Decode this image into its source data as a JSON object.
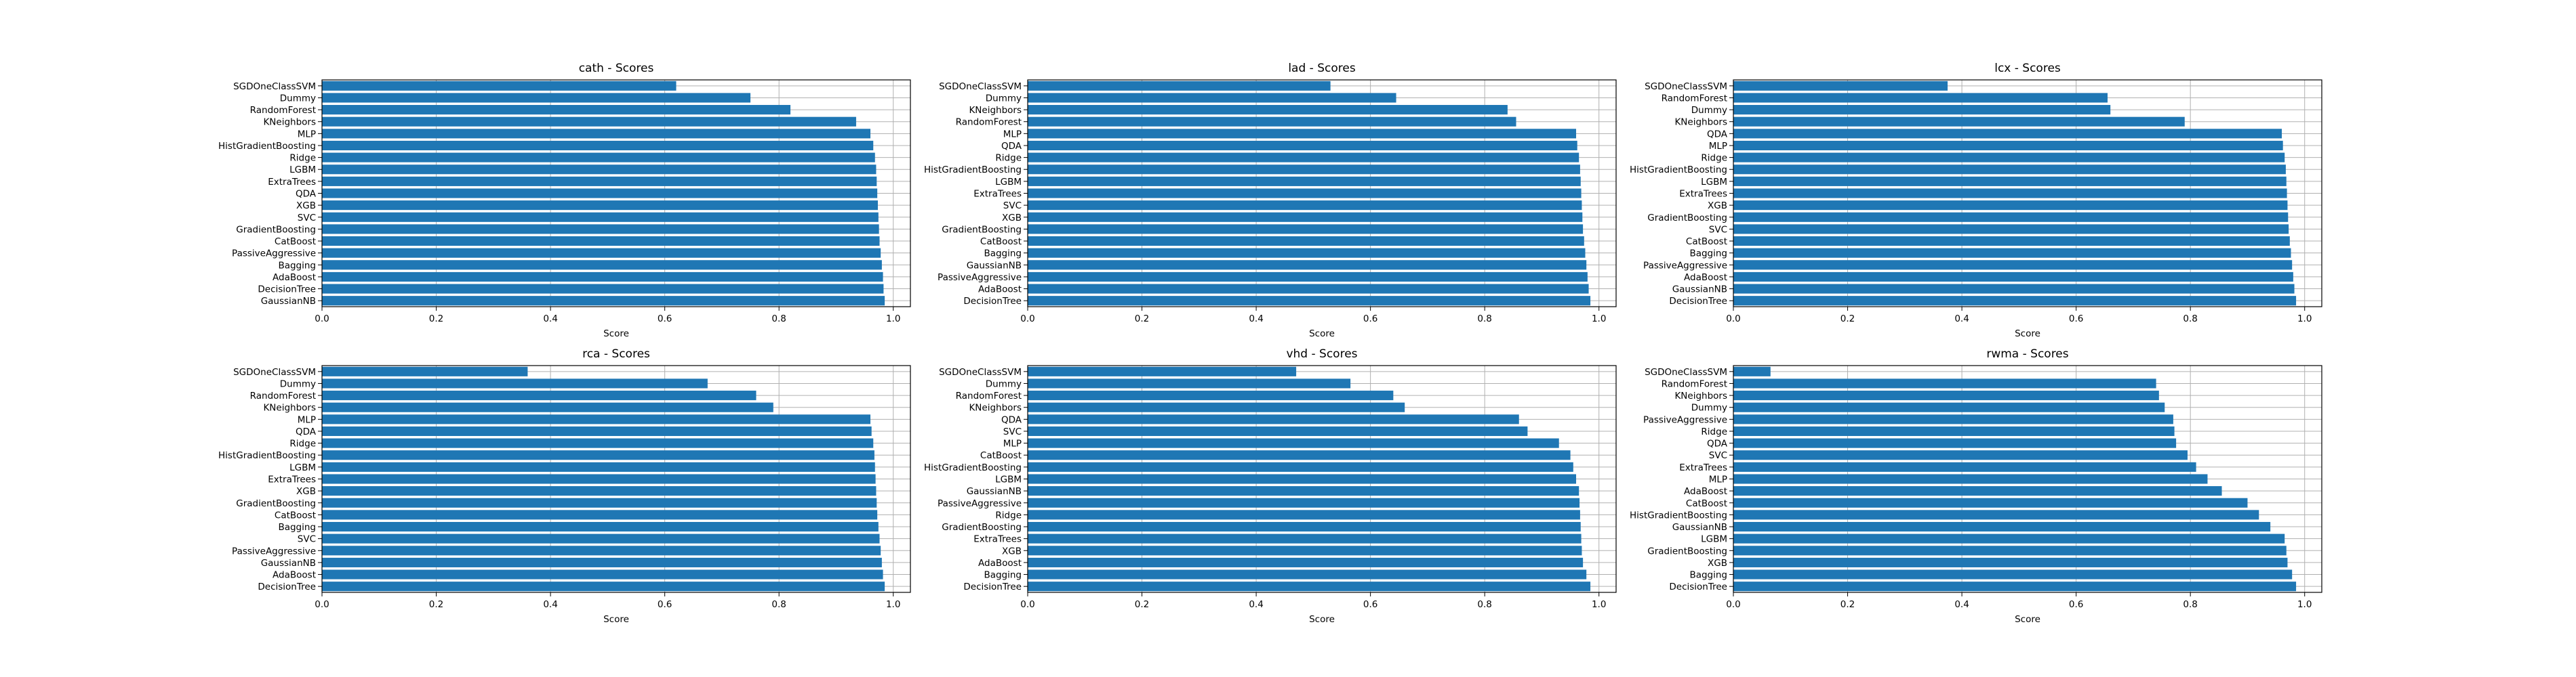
{
  "colors": {
    "bar": "#1f77b4",
    "grid": "#b0b0b0",
    "axis": "#000000"
  },
  "chart_data": [
    {
      "type": "bar",
      "orientation": "horizontal",
      "grid": true,
      "title": "cath - Scores",
      "xlabel": "Score",
      "ylabel": "",
      "xlim": [
        0,
        1.03
      ],
      "xticks": [
        "0.0",
        "0.2",
        "0.4",
        "0.6",
        "0.8",
        "1.0"
      ],
      "categories": [
        "SGDOneClassSVM",
        "Dummy",
        "RandomForest",
        "KNeighbors",
        "MLP",
        "HistGradientBoosting",
        "Ridge",
        "LGBM",
        "ExtraTrees",
        "QDA",
        "XGB",
        "SVC",
        "GradientBoosting",
        "CatBoost",
        "PassiveAggressive",
        "Bagging",
        "AdaBoost",
        "DecisionTree",
        "GaussianNB"
      ],
      "values": [
        0.62,
        0.75,
        0.82,
        0.935,
        0.96,
        0.965,
        0.968,
        0.97,
        0.971,
        0.972,
        0.973,
        0.974,
        0.975,
        0.976,
        0.978,
        0.98,
        0.982,
        0.983,
        0.985
      ]
    },
    {
      "type": "bar",
      "orientation": "horizontal",
      "grid": true,
      "title": "lad - Scores",
      "xlabel": "Score",
      "ylabel": "",
      "xlim": [
        0,
        1.03
      ],
      "xticks": [
        "0.0",
        "0.2",
        "0.4",
        "0.6",
        "0.8",
        "1.0"
      ],
      "categories": [
        "SGDOneClassSVM",
        "Dummy",
        "KNeighbors",
        "RandomForest",
        "MLP",
        "QDA",
        "Ridge",
        "HistGradientBoosting",
        "LGBM",
        "ExtraTrees",
        "SVC",
        "XGB",
        "GradientBoosting",
        "CatBoost",
        "Bagging",
        "GaussianNB",
        "PassiveAggressive",
        "AdaBoost",
        "DecisionTree"
      ],
      "values": [
        0.53,
        0.645,
        0.84,
        0.855,
        0.96,
        0.962,
        0.965,
        0.967,
        0.968,
        0.969,
        0.97,
        0.971,
        0.972,
        0.974,
        0.976,
        0.978,
        0.98,
        0.982,
        0.985
      ]
    },
    {
      "type": "bar",
      "orientation": "horizontal",
      "grid": true,
      "title": "lcx - Scores",
      "xlabel": "Score",
      "ylabel": "",
      "xlim": [
        0,
        1.03
      ],
      "xticks": [
        "0.0",
        "0.2",
        "0.4",
        "0.6",
        "0.8",
        "1.0"
      ],
      "categories": [
        "SGDOneClassSVM",
        "RandomForest",
        "Dummy",
        "KNeighbors",
        "QDA",
        "MLP",
        "Ridge",
        "HistGradientBoosting",
        "LGBM",
        "ExtraTrees",
        "XGB",
        "GradientBoosting",
        "SVC",
        "CatBoost",
        "Bagging",
        "PassiveAggressive",
        "AdaBoost",
        "GaussianNB",
        "DecisionTree"
      ],
      "values": [
        0.375,
        0.655,
        0.66,
        0.79,
        0.96,
        0.962,
        0.965,
        0.967,
        0.968,
        0.969,
        0.97,
        0.971,
        0.972,
        0.974,
        0.976,
        0.978,
        0.98,
        0.982,
        0.985
      ]
    },
    {
      "type": "bar",
      "orientation": "horizontal",
      "grid": true,
      "title": "rca - Scores",
      "xlabel": "Score",
      "ylabel": "",
      "xlim": [
        0,
        1.03
      ],
      "xticks": [
        "0.0",
        "0.2",
        "0.4",
        "0.6",
        "0.8",
        "1.0"
      ],
      "categories": [
        "SGDOneClassSVM",
        "Dummy",
        "RandomForest",
        "KNeighbors",
        "MLP",
        "QDA",
        "Ridge",
        "HistGradientBoosting",
        "LGBM",
        "ExtraTrees",
        "XGB",
        "GradientBoosting",
        "CatBoost",
        "Bagging",
        "SVC",
        "PassiveAggressive",
        "GaussianNB",
        "AdaBoost",
        "DecisionTree"
      ],
      "values": [
        0.36,
        0.675,
        0.76,
        0.79,
        0.96,
        0.962,
        0.965,
        0.967,
        0.968,
        0.969,
        0.97,
        0.971,
        0.972,
        0.974,
        0.976,
        0.978,
        0.98,
        0.982,
        0.985
      ]
    },
    {
      "type": "bar",
      "orientation": "horizontal",
      "grid": true,
      "title": "vhd - Scores",
      "xlabel": "Score",
      "ylabel": "",
      "xlim": [
        0,
        1.03
      ],
      "xticks": [
        "0.0",
        "0.2",
        "0.4",
        "0.6",
        "0.8",
        "1.0"
      ],
      "categories": [
        "SGDOneClassSVM",
        "Dummy",
        "RandomForest",
        "KNeighbors",
        "QDA",
        "SVC",
        "MLP",
        "CatBoost",
        "HistGradientBoosting",
        "LGBM",
        "GaussianNB",
        "PassiveAggressive",
        "Ridge",
        "GradientBoosting",
        "ExtraTrees",
        "XGB",
        "AdaBoost",
        "Bagging",
        "DecisionTree"
      ],
      "values": [
        0.47,
        0.565,
        0.64,
        0.66,
        0.86,
        0.875,
        0.93,
        0.95,
        0.955,
        0.96,
        0.965,
        0.966,
        0.967,
        0.968,
        0.969,
        0.97,
        0.972,
        0.978,
        0.985
      ]
    },
    {
      "type": "bar",
      "orientation": "horizontal",
      "grid": true,
      "title": "rwma - Scores",
      "xlabel": "Score",
      "ylabel": "",
      "xlim": [
        0,
        1.03
      ],
      "xticks": [
        "0.0",
        "0.2",
        "0.4",
        "0.6",
        "0.8",
        "1.0"
      ],
      "categories": [
        "SGDOneClassSVM",
        "RandomForest",
        "KNeighbors",
        "Dummy",
        "PassiveAggressive",
        "Ridge",
        "QDA",
        "SVC",
        "ExtraTrees",
        "MLP",
        "AdaBoost",
        "CatBoost",
        "HistGradientBoosting",
        "GaussianNB",
        "LGBM",
        "GradientBoosting",
        "XGB",
        "Bagging",
        "DecisionTree"
      ],
      "values": [
        0.065,
        0.74,
        0.745,
        0.755,
        0.77,
        0.772,
        0.775,
        0.795,
        0.81,
        0.83,
        0.855,
        0.9,
        0.92,
        0.94,
        0.965,
        0.968,
        0.97,
        0.978,
        0.985
      ]
    }
  ]
}
